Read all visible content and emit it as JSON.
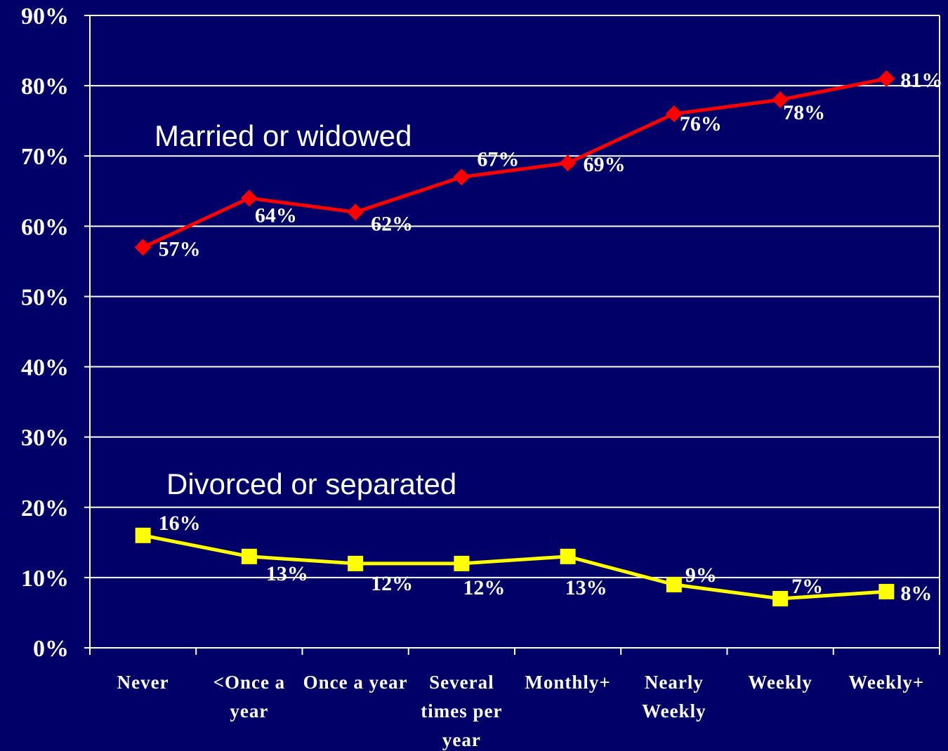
{
  "chart_data": {
    "type": "line",
    "categories": [
      "Never",
      "<Once a year",
      "Once a year",
      "Several times per year",
      "Monthly+",
      "Nearly Weekly",
      "Weekly",
      "Weekly+"
    ],
    "series": [
      {
        "name": "Married or widowed",
        "color": "#ff0000",
        "marker": "diamond",
        "values": [
          57,
          64,
          62,
          67,
          69,
          76,
          78,
          81
        ],
        "value_labels": [
          "57%",
          "64%",
          "62%",
          "67%",
          "69%",
          "76%",
          "78%",
          "81%"
        ]
      },
      {
        "name": "Divorced or separated",
        "color": "#ffff00",
        "marker": "square",
        "values": [
          16,
          13,
          12,
          12,
          13,
          9,
          7,
          8
        ],
        "value_labels": [
          "16%",
          "13%",
          "12%",
          "12%",
          "13%",
          "9%",
          "7%",
          "8%"
        ]
      }
    ],
    "ylim": [
      0,
      90
    ],
    "yticks": [
      {
        "value": 0,
        "label": "0%"
      },
      {
        "value": 10,
        "label": "10%"
      },
      {
        "value": 20,
        "label": "20%"
      },
      {
        "value": 30,
        "label": "30%"
      },
      {
        "value": 40,
        "label": "40%"
      },
      {
        "value": 50,
        "label": "50%"
      },
      {
        "value": 60,
        "label": "60%"
      },
      {
        "value": 70,
        "label": "70%"
      },
      {
        "value": 80,
        "label": "80%"
      },
      {
        "value": 90,
        "label": "90%"
      }
    ],
    "grid": true
  }
}
